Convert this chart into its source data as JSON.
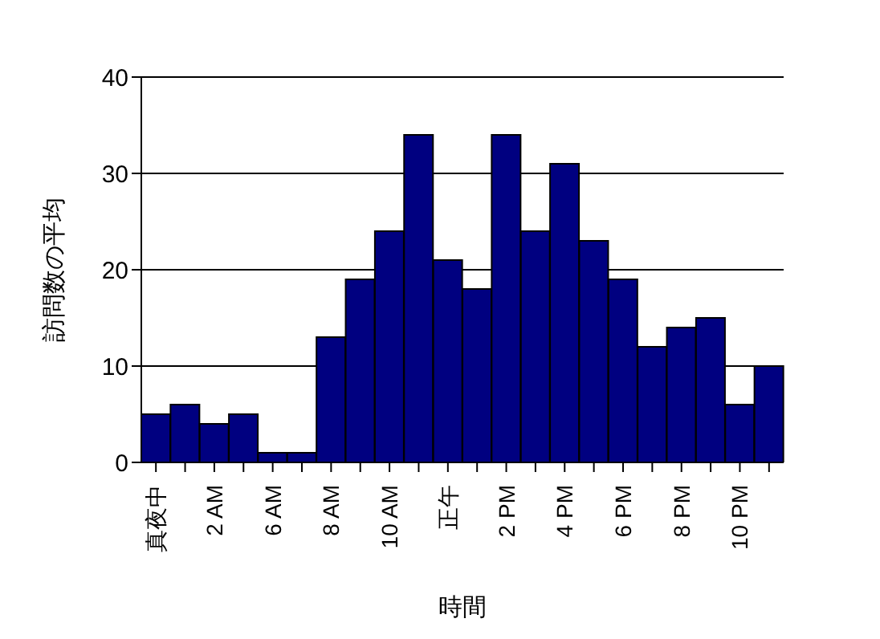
{
  "chart_data": {
    "type": "bar",
    "xlabel": "時間",
    "ylabel": "訪問数の平均",
    "categories": [
      "真夜中",
      null,
      "2 AM",
      null,
      "6 AM",
      null,
      "8 AM",
      null,
      "10 AM",
      null,
      "正午",
      null,
      "2 PM",
      null,
      "4 PM",
      null,
      "6 PM",
      null,
      "8 PM",
      null,
      "10 PM",
      null
    ],
    "values": [
      5,
      6,
      4,
      5,
      1,
      1,
      13,
      19,
      24,
      34,
      21,
      18,
      34,
      24,
      31,
      23,
      19,
      12,
      14,
      15,
      6,
      10
    ],
    "color": "#000080",
    "ylim": [
      0,
      40
    ],
    "yticks": [
      0,
      10,
      20,
      30,
      40
    ],
    "grid": "y"
  }
}
